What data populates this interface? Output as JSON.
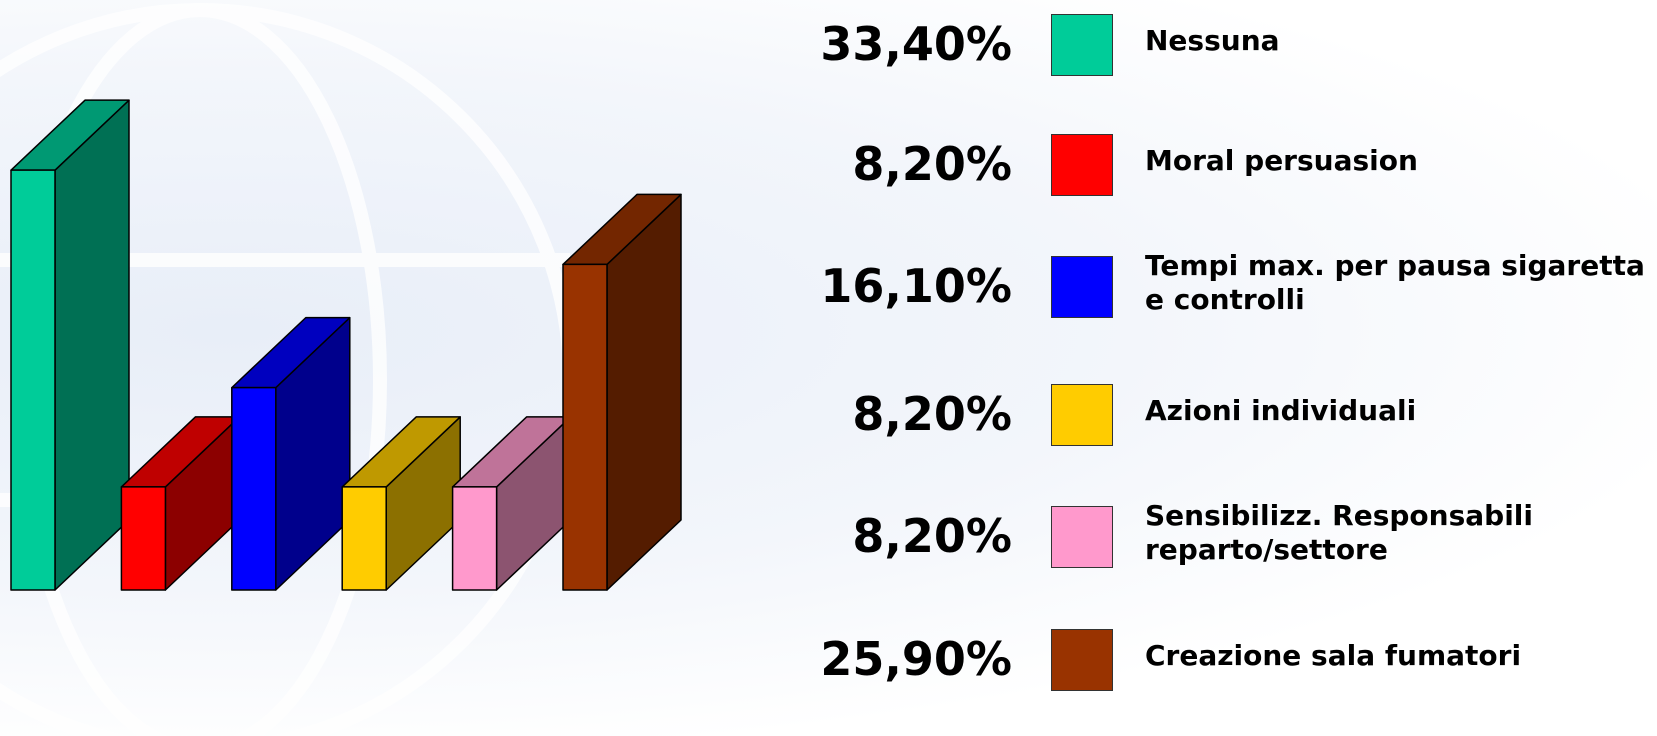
{
  "chart_data": {
    "type": "bar3d",
    "categories": [
      "Nessuna",
      "Moral persuasion",
      "Tempi max. per pausa sigaretta e controlli",
      "Azioni individuali",
      "Sensibilizz. Responsabili reparto/settore",
      "Creazione sala fumatori"
    ],
    "values": [
      33.4,
      8.2,
      16.1,
      8.2,
      8.2,
      25.9
    ],
    "value_labels": [
      "33,40%",
      "8,20%",
      "16,10%",
      "8,20%",
      "8,20%",
      "25,90%"
    ],
    "colors": [
      "#00cc99",
      "#ff0000",
      "#0000ff",
      "#ffcc00",
      "#ff99cc",
      "#993300"
    ]
  }
}
